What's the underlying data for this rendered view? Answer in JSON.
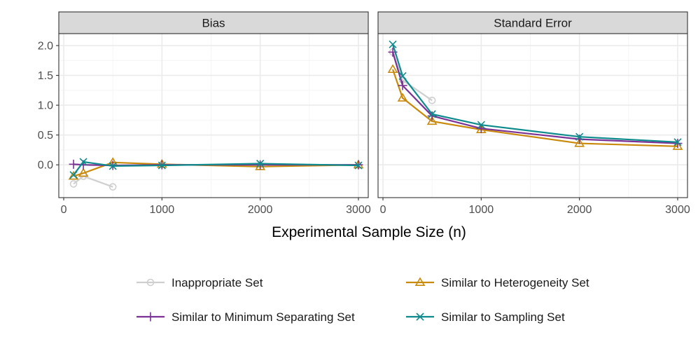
{
  "chart_data": {
    "type": "line",
    "xlabel": "Experimental Sample Size (n)",
    "ylabel": "",
    "xlim": [
      -50,
      3100
    ],
    "ylim": [
      -0.55,
      2.2
    ],
    "x_ticks": [
      0,
      1000,
      2000,
      3000
    ],
    "y_ticks": [
      0.0,
      0.5,
      1.0,
      1.5,
      2.0
    ],
    "x_tick_labels": [
      "0",
      "1000",
      "2000",
      "3000"
    ],
    "y_tick_labels": [
      "0.0",
      "0.5",
      "1.0",
      "1.5",
      "2.0"
    ],
    "grid": true,
    "legend_position": "bottom",
    "panels": [
      {
        "title": "Bias",
        "series": [
          {
            "name": "Inappropriate Set",
            "x": [
              100,
              200,
              500
            ],
            "y": [
              -0.32,
              -0.19,
              -0.37
            ]
          },
          {
            "name": "Similar to Heterogeneity Set",
            "x": [
              100,
              200,
              500,
              1000,
              2000,
              3000
            ],
            "y": [
              -0.19,
              -0.14,
              0.04,
              0.01,
              -0.03,
              0.0
            ]
          },
          {
            "name": "Similar to Minimum Separating Set",
            "x": [
              100,
              200,
              500,
              1000,
              2000,
              3000
            ],
            "y": [
              0.01,
              0.0,
              -0.01,
              0.0,
              0.0,
              0.0
            ]
          },
          {
            "name": "Similar to Sampling Set",
            "x": [
              100,
              200,
              500,
              1000,
              2000,
              3000
            ],
            "y": [
              -0.17,
              0.05,
              -0.02,
              -0.01,
              0.02,
              -0.01
            ]
          }
        ]
      },
      {
        "title": "Standard Error",
        "series": [
          {
            "name": "Inappropriate Set",
            "x": [
              100,
              200,
              500
            ],
            "y": [
              1.89,
              1.42,
              1.08
            ]
          },
          {
            "name": "Similar to Heterogeneity Set",
            "x": [
              100,
              200,
              500,
              1000,
              2000,
              3000
            ],
            "y": [
              1.6,
              1.12,
              0.73,
              0.59,
              0.36,
              0.31
            ]
          },
          {
            "name": "Similar to Minimum Separating Set",
            "x": [
              100,
              200,
              500,
              1000,
              2000,
              3000
            ],
            "y": [
              1.89,
              1.33,
              0.82,
              0.61,
              0.43,
              0.36
            ]
          },
          {
            "name": "Similar to Sampling Set",
            "x": [
              100,
              200,
              500,
              1000,
              2000,
              3000
            ],
            "y": [
              2.02,
              1.49,
              0.85,
              0.67,
              0.47,
              0.38
            ]
          }
        ]
      }
    ],
    "legend": [
      {
        "name": "Inappropriate Set",
        "color": "#cfcfcf",
        "marker": "circle"
      },
      {
        "name": "Similar to Heterogeneity Set",
        "color": "#c98a0c",
        "marker": "triangle"
      },
      {
        "name": "Similar to Minimum Separating Set",
        "color": "#7b3294",
        "marker": "plus"
      },
      {
        "name": "Similar to Sampling Set",
        "color": "#0f8b8d",
        "marker": "x"
      }
    ]
  },
  "colors": {
    "strip_fill": "#d9d9d9",
    "panel_border": "#333333",
    "grid_major": "#ebebeb",
    "grid_minor": "#f4f4f4"
  }
}
